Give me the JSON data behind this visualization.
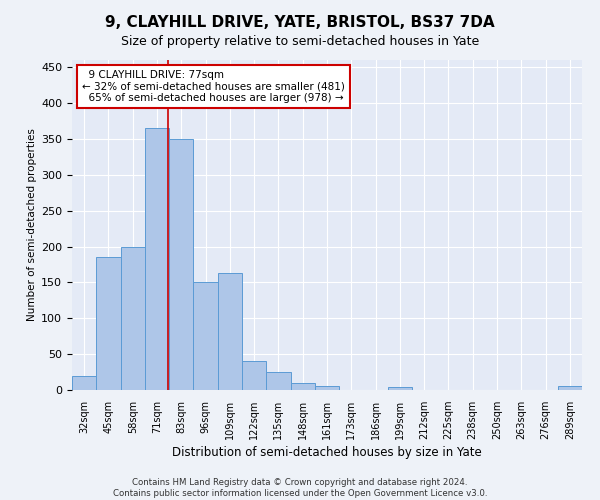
{
  "title": "9, CLAYHILL DRIVE, YATE, BRISTOL, BS37 7DA",
  "subtitle": "Size of property relative to semi-detached houses in Yate",
  "xlabel": "Distribution of semi-detached houses by size in Yate",
  "ylabel": "Number of semi-detached properties",
  "categories": [
    "32sqm",
    "45sqm",
    "58sqm",
    "71sqm",
    "83sqm",
    "96sqm",
    "109sqm",
    "122sqm",
    "135sqm",
    "148sqm",
    "161sqm",
    "173sqm",
    "186sqm",
    "199sqm",
    "212sqm",
    "225sqm",
    "238sqm",
    "250sqm",
    "263sqm",
    "276sqm",
    "289sqm"
  ],
  "values": [
    20,
    185,
    200,
    365,
    350,
    150,
    163,
    40,
    25,
    10,
    5,
    0,
    0,
    4,
    0,
    0,
    0,
    0,
    0,
    0,
    5
  ],
  "bar_color": "#aec6e8",
  "bar_edge_color": "#5b9bd5",
  "property_label": "9 CLAYHILL DRIVE: 77sqm",
  "pct_smaller": 32,
  "count_smaller": 481,
  "pct_larger": 65,
  "count_larger": 978,
  "annotation_box_color": "#ffffff",
  "annotation_box_edge": "#cc0000",
  "ylim": [
    0,
    460
  ],
  "yticks": [
    0,
    50,
    100,
    150,
    200,
    250,
    300,
    350,
    400,
    450
  ],
  "footer1": "Contains HM Land Registry data © Crown copyright and database right 2024.",
  "footer2": "Contains public sector information licensed under the Open Government Licence v3.0.",
  "bg_color": "#eef2f8",
  "plot_bg_color": "#e4eaf6",
  "title_fontsize": 11,
  "subtitle_fontsize": 9,
  "vline_color": "#cc0000",
  "vline_pos": 3.46
}
